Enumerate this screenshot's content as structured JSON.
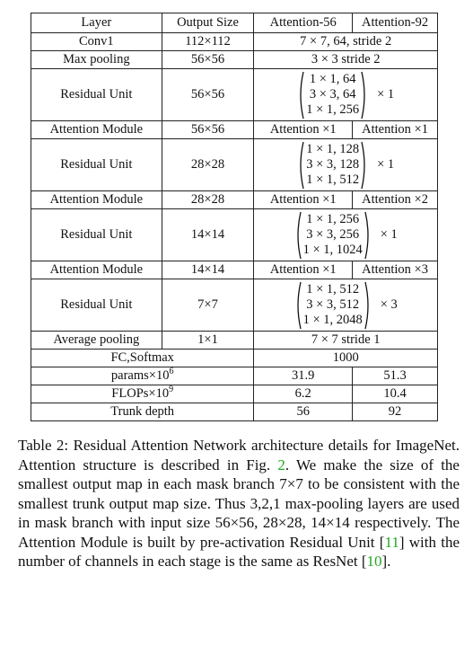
{
  "table": {
    "headers": [
      "Layer",
      "Output Size",
      "Attention-56",
      "Attention-92"
    ],
    "rows": [
      {
        "layer": "Conv1",
        "output": "112×112",
        "span": "7 × 7, 64, stride 2"
      },
      {
        "layer": "Max pooling",
        "output": "56×56",
        "span": "3 × 3 stride 2"
      },
      {
        "layer": "Residual Unit",
        "output": "56×56",
        "matrix": [
          "1 × 1, 64",
          "3 × 3, 64",
          "1 × 1, 256"
        ],
        "mult": "× 1"
      },
      {
        "layer": "Attention Module",
        "output": "56×56",
        "a56": "Attention ×1",
        "a92": "Attention ×1"
      },
      {
        "layer": "Residual Unit",
        "output": "28×28",
        "matrix": [
          "1 × 1, 128",
          "3 × 3, 128",
          "1 × 1, 512"
        ],
        "mult": "× 1"
      },
      {
        "layer": "Attention Module",
        "output": "28×28",
        "a56": "Attention ×1",
        "a92": "Attention ×2"
      },
      {
        "layer": "Residual Unit",
        "output": "14×14",
        "matrix": [
          "1 × 1, 256",
          "3 × 3, 256",
          "1 × 1, 1024"
        ],
        "mult": "× 1"
      },
      {
        "layer": "Attention Module",
        "output": "14×14",
        "a56": "Attention ×1",
        "a92": "Attention ×3"
      },
      {
        "layer": "Residual Unit",
        "output": "7×7",
        "matrix": [
          "1 × 1, 512",
          "3 × 3, 512",
          "1 × 1, 2048"
        ],
        "mult": "× 3"
      },
      {
        "layer": "Average pooling",
        "output": "1×1",
        "span": "7 × 7 stride 1"
      },
      {
        "layer": "FC,Softmax",
        "span": "1000"
      }
    ],
    "footer": [
      {
        "label": "params×10",
        "exp": "6",
        "a56": "31.9",
        "a92": "51.3"
      },
      {
        "label": "FLOPs×10",
        "exp": "9",
        "a56": "6.2",
        "a92": "10.4"
      },
      {
        "label": "Trunk depth",
        "exp": "",
        "a56": "56",
        "a92": "92"
      }
    ]
  },
  "caption": {
    "part1": "Table 2: Residual Attention Network architecture details for ImageNet. Attention structure is described in Fig. ",
    "ref_fig": "2",
    "part2": ". We make the size of the smallest output map in each mask branch 7×7 to be consistent with the smallest trunk output map size. Thus 3,2,1 max-pooling layers are used in mask branch with input size 56×56, 28×28, 14×14 respectively. The Attention Module is built by pre-activation Residual Unit [",
    "ref_11": "11",
    "part3": "] with the number of channels in each stage is the same as ResNet [",
    "ref_10": "10",
    "part4": "]."
  }
}
